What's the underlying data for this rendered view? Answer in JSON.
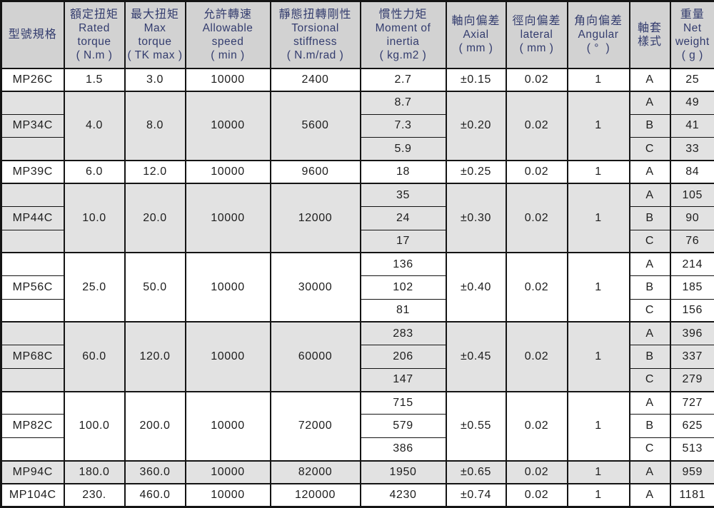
{
  "colors": {
    "header_bg": "#d2d2d2",
    "shaded_row_bg": "#e2e2e2",
    "plain_row_bg": "#ffffff",
    "header_text": "#333c6e",
    "data_text": "#1d1d1d",
    "grid_border": "#141414"
  },
  "table": {
    "columns": [
      {
        "id": "model",
        "lines": [
          "型號規格"
        ]
      },
      {
        "id": "rated-torque",
        "lines": [
          "額定扭矩",
          "Rated",
          "torque",
          "( N.m )"
        ]
      },
      {
        "id": "max-torque",
        "lines": [
          "最大扭矩",
          "Max",
          "torque",
          "( TK max )"
        ]
      },
      {
        "id": "allowable-speed",
        "lines": [
          "允許轉速",
          "Allowable",
          "speed",
          "( min )"
        ]
      },
      {
        "id": "torsional-stiffness",
        "lines": [
          "靜態扭轉剛性",
          "Torsional",
          "stiffness",
          "( N.m/rad )"
        ]
      },
      {
        "id": "moment-of-inertia",
        "lines": [
          "慣性力矩",
          "Moment of",
          "inertia",
          "( kg.m2 )"
        ]
      },
      {
        "id": "axial-deviation",
        "lines": [
          "軸向偏差",
          "Axial",
          "( mm )"
        ]
      },
      {
        "id": "lateral-deviation",
        "lines": [
          "徑向偏差",
          "lateral",
          "( mm )"
        ]
      },
      {
        "id": "angular-deviation",
        "lines": [
          "角向偏差",
          "Angular",
          "( °  )"
        ]
      },
      {
        "id": "sleeve-style",
        "lines": [
          "軸套",
          "樣式"
        ]
      },
      {
        "id": "net-weight",
        "lines": [
          "重量",
          "Net",
          "weight",
          "( g )"
        ]
      }
    ],
    "rows": [
      {
        "model": "MP26C",
        "rated_torque": "1.5",
        "max_torque": "3.0",
        "allowable_speed": "10000",
        "torsional_stiffness": "2400",
        "axial": "±0.15",
        "lateral": "0.02",
        "angular": "1",
        "variants": [
          {
            "inertia": "2.7",
            "style": "A",
            "weight": "25"
          }
        ]
      },
      {
        "model": "MP34C",
        "rated_torque": "4.0",
        "max_torque": "8.0",
        "allowable_speed": "10000",
        "torsional_stiffness": "5600",
        "axial": "±0.20",
        "lateral": "0.02",
        "angular": "1",
        "variants": [
          {
            "inertia": "8.7",
            "style": "A",
            "weight": "49"
          },
          {
            "inertia": "7.3",
            "style": "B",
            "weight": "41"
          },
          {
            "inertia": "5.9",
            "style": "C",
            "weight": "33"
          }
        ]
      },
      {
        "model": "MP39C",
        "rated_torque": "6.0",
        "max_torque": "12.0",
        "allowable_speed": "10000",
        "torsional_stiffness": "9600",
        "axial": "±0.25",
        "lateral": "0.02",
        "angular": "1",
        "variants": [
          {
            "inertia": "18",
            "style": "A",
            "weight": "84"
          }
        ]
      },
      {
        "model": "MP44C",
        "rated_torque": "10.0",
        "max_torque": "20.0",
        "allowable_speed": "10000",
        "torsional_stiffness": "12000",
        "axial": "±0.30",
        "lateral": "0.02",
        "angular": "1",
        "variants": [
          {
            "inertia": "35",
            "style": "A",
            "weight": "105"
          },
          {
            "inertia": "24",
            "style": "B",
            "weight": "90"
          },
          {
            "inertia": "17",
            "style": "C",
            "weight": "76"
          }
        ]
      },
      {
        "model": "MP56C",
        "rated_torque": "25.0",
        "max_torque": "50.0",
        "allowable_speed": "10000",
        "torsional_stiffness": "30000",
        "axial": "±0.40",
        "lateral": "0.02",
        "angular": "1",
        "variants": [
          {
            "inertia": "136",
            "style": "A",
            "weight": "214"
          },
          {
            "inertia": "102",
            "style": "B",
            "weight": "185"
          },
          {
            "inertia": "81",
            "style": "C",
            "weight": "156"
          }
        ]
      },
      {
        "model": "MP68C",
        "rated_torque": "60.0",
        "max_torque": "120.0",
        "allowable_speed": "10000",
        "torsional_stiffness": "60000",
        "axial": "±0.45",
        "lateral": "0.02",
        "angular": "1",
        "variants": [
          {
            "inertia": "283",
            "style": "A",
            "weight": "396"
          },
          {
            "inertia": "206",
            "style": "B",
            "weight": "337"
          },
          {
            "inertia": "147",
            "style": "C",
            "weight": "279"
          }
        ]
      },
      {
        "model": "MP82C",
        "rated_torque": "100.0",
        "max_torque": "200.0",
        "allowable_speed": "10000",
        "torsional_stiffness": "72000",
        "axial": "±0.55",
        "lateral": "0.02",
        "angular": "1",
        "variants": [
          {
            "inertia": "715",
            "style": "A",
            "weight": "727"
          },
          {
            "inertia": "579",
            "style": "B",
            "weight": "625"
          },
          {
            "inertia": "386",
            "style": "C",
            "weight": "513"
          }
        ]
      },
      {
        "model": "MP94C",
        "rated_torque": "180.0",
        "max_torque": "360.0",
        "allowable_speed": "10000",
        "torsional_stiffness": "82000",
        "axial": "±0.65",
        "lateral": "0.02",
        "angular": "1",
        "variants": [
          {
            "inertia": "1950",
            "style": "A",
            "weight": "959"
          }
        ]
      },
      {
        "model": "MP104C",
        "rated_torque": "230.",
        "max_torque": "460.0",
        "allowable_speed": "10000",
        "torsional_stiffness": "120000",
        "axial": "±0.74",
        "lateral": "0.02",
        "angular": "1",
        "variants": [
          {
            "inertia": "4230",
            "style": "A",
            "weight": "1181"
          }
        ]
      }
    ]
  }
}
